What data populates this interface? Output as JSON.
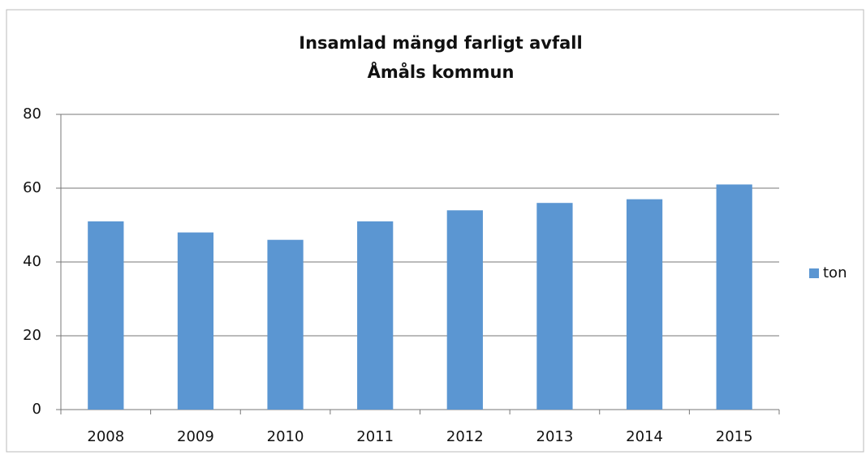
{
  "chart_data": {
    "type": "bar",
    "title": "Insamlad mängd farligt avfall",
    "subtitle": "Åmåls kommun",
    "categories": [
      "2008",
      "2009",
      "2010",
      "2011",
      "2012",
      "2013",
      "2014",
      "2015"
    ],
    "series": [
      {
        "name": "ton",
        "color": "#5b96d2",
        "values": [
          51,
          48,
          46,
          51,
          54,
          56,
          57,
          61
        ]
      }
    ],
    "ylim": [
      0,
      80
    ],
    "yticks": [
      0,
      20,
      40,
      60,
      80
    ],
    "grid": true,
    "legend": "right"
  }
}
